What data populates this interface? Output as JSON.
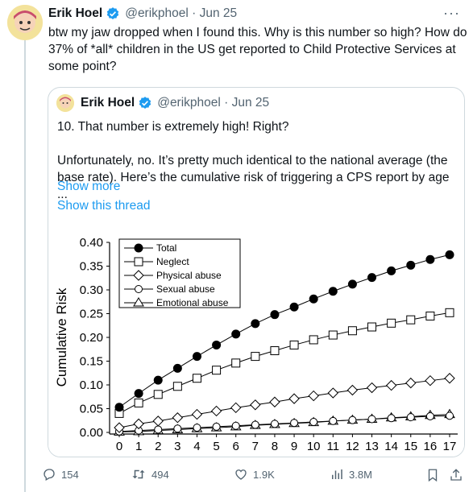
{
  "tweet": {
    "author_name": "Erik Hoel",
    "handle": "@erikphoel",
    "date": "Jun 25",
    "text": "btw my jaw dropped when I found this. Why is this number so high? How do 37% of *all* children in the US get reported to Child Protective Services at some point?"
  },
  "quote": {
    "author_name": "Erik Hoel",
    "handle": "@erikphoel",
    "date": "Jun 25",
    "paragraph1": "10. That number is extremely high! Right?",
    "paragraph2": "Unfortunately, no. It’s pretty much identical to the national average (the base rate). Here’s the cumulative risk of triggering a CPS report by age ...",
    "show_more": "Show more",
    "show_thread": "Show this thread"
  },
  "chart_data": {
    "type": "line",
    "ylabel": "Cumulative Risk",
    "xlabel": "",
    "x": [
      0,
      1,
      2,
      3,
      4,
      5,
      6,
      7,
      8,
      9,
      10,
      11,
      12,
      13,
      14,
      15,
      16,
      17
    ],
    "ylim": [
      0,
      0.4
    ],
    "yticks": [
      "0.00",
      "0.05",
      "0.10",
      "0.15",
      "0.20",
      "0.25",
      "0.30",
      "0.35",
      "0.40"
    ],
    "legend_position": "top-left",
    "series": [
      {
        "name": "Total",
        "marker": "filled-circle",
        "values": [
          0.053,
          0.082,
          0.11,
          0.135,
          0.16,
          0.184,
          0.207,
          0.229,
          0.248,
          0.264,
          0.281,
          0.297,
          0.312,
          0.326,
          0.34,
          0.352,
          0.364,
          0.374
        ]
      },
      {
        "name": "Neglect",
        "marker": "square",
        "values": [
          0.04,
          0.062,
          0.08,
          0.097,
          0.114,
          0.131,
          0.146,
          0.16,
          0.172,
          0.184,
          0.195,
          0.205,
          0.214,
          0.222,
          0.23,
          0.237,
          0.245,
          0.252
        ]
      },
      {
        "name": "Physical abuse",
        "marker": "diamond",
        "values": [
          0.01,
          0.018,
          0.024,
          0.031,
          0.038,
          0.045,
          0.052,
          0.058,
          0.064,
          0.071,
          0.077,
          0.083,
          0.089,
          0.094,
          0.099,
          0.104,
          0.109,
          0.114
        ]
      },
      {
        "name": "Sexual abuse",
        "marker": "open-circle",
        "values": [
          0.002,
          0.004,
          0.006,
          0.008,
          0.01,
          0.012,
          0.014,
          0.016,
          0.018,
          0.02,
          0.022,
          0.024,
          0.026,
          0.028,
          0.03,
          0.032,
          0.034,
          0.035
        ]
      },
      {
        "name": "Emotional abuse",
        "marker": "triangle",
        "values": [
          0.001,
          0.002,
          0.004,
          0.006,
          0.008,
          0.01,
          0.012,
          0.015,
          0.017,
          0.019,
          0.021,
          0.024,
          0.026,
          0.028,
          0.031,
          0.033,
          0.036,
          0.038
        ]
      }
    ]
  },
  "actions": {
    "replies": "154",
    "reposts": "494",
    "likes": "1.9K",
    "views": "3.8M"
  }
}
